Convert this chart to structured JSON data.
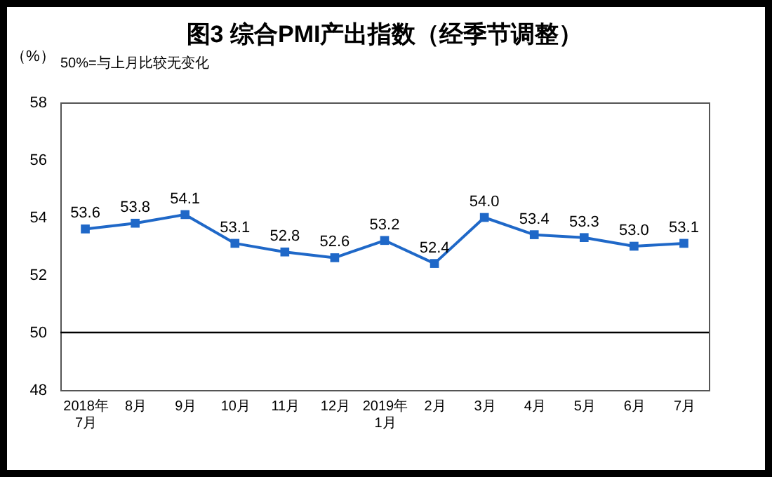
{
  "chart_data": {
    "type": "line",
    "title": "图3 综合PMI产出指数（经季节调整）",
    "ylabel": "（%）",
    "annotations": [
      "50%=与上月比较无变化"
    ],
    "categories": [
      "2018年\n7月",
      "8月",
      "9月",
      "10月",
      "11月",
      "12月",
      "2019年\n1月",
      "2月",
      "3月",
      "4月",
      "5月",
      "6月",
      "7月"
    ],
    "series": [
      {
        "color": "#1f68c8",
        "values": [
          53.6,
          53.8,
          54.1,
          53.1,
          52.8,
          52.6,
          53.2,
          52.4,
          54.0,
          53.4,
          53.3,
          53.0,
          53.1
        ]
      }
    ],
    "ylim": [
      48,
      58
    ],
    "yticks": [
      48,
      50,
      52,
      54,
      56,
      58
    ],
    "ref_lines": [
      {
        "axis": "y",
        "value": 50,
        "color": "#000000"
      }
    ],
    "value_labels": [
      "53.6",
      "53.8",
      "54.1",
      "53.1",
      "52.8",
      "52.6",
      "53.2",
      "52.4",
      "54.0",
      "53.4",
      "53.3",
      "53.0",
      "53.1"
    ],
    "marker": "square",
    "grid": false
  }
}
